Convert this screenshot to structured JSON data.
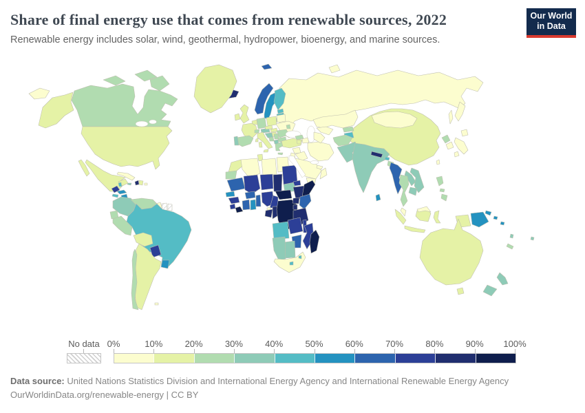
{
  "header": {
    "title": "Share of final energy use that comes from renewable sources, 2022",
    "subtitle": "Renewable energy includes solar, wind, geothermal, hydropower, bioenergy, and marine sources.",
    "logo": {
      "line1": "Our World",
      "line2": "in Data",
      "bg": "#132b4d",
      "accent": "#d93a2f"
    }
  },
  "legend": {
    "no_data_label": "No data",
    "tick_labels": [
      "0%",
      "10%",
      "20%",
      "30%",
      "40%",
      "50%",
      "60%",
      "70%",
      "80%",
      "90%",
      "100%"
    ],
    "bucket_ranges": [
      "0-10%",
      "10-20%",
      "20-30%",
      "30-40%",
      "40-50%",
      "50-60%",
      "60-70%",
      "70-80%",
      "80-90%",
      "90-100%"
    ],
    "colors": [
      "#fcfdcf",
      "#e5f2a6",
      "#b1dcb0",
      "#8ecbb7",
      "#54bcc5",
      "#2492c0",
      "#2d64ae",
      "#2c3f97",
      "#202e6f",
      "#0f1e4d"
    ]
  },
  "footer": {
    "source_label": "Data source:",
    "source_text": " United Nations Statistics Division and International Energy Agency and International Renewable Energy Agency",
    "link_line": "OurWorldinData.org/renewable-energy | CC BY"
  },
  "map": {
    "ocean": "#ffffff",
    "stroke": "#bdbdae",
    "countries": {
      "russia": 0,
      "kazakhstan": 0,
      "uzbekistan": 0,
      "turkmenistan": 0,
      "kyrgyzstan": 2,
      "tajikistan": 4,
      "mongolia": 0,
      "china": 1,
      "north-korea": 2,
      "south-korea": 0,
      "japan": 0,
      "taiwan": 0,
      "afghanistan": 2,
      "pakistan": 3,
      "india": 3,
      "nepal": 8,
      "bhutan": 4,
      "bangladesh": 2,
      "sri-lanka": 5,
      "myanmar": 6,
      "thailand": 2,
      "laos": 3,
      "vietnam": 3,
      "cambodia": 3,
      "malaysia": 0,
      "indonesia": 1,
      "timor-leste": 1,
      "papua-new-guinea": 5,
      "solomon-islands": 5,
      "vanuatu": 3,
      "fiji": 3,
      "new-caledonia": 2,
      "philippines": 2,
      "australia": 1,
      "new-zealand": 3,
      "iran": 0,
      "iraq": 0,
      "saudi-arabia": 0,
      "yemen": 0,
      "oman": 0,
      "syria": 0,
      "jordan-israel": 0,
      "gulf-states": 0,
      "turkey": 1,
      "georgia": 2,
      "armenia": 1,
      "azerbaijan": 0,
      "iceland": 8,
      "norway": 6,
      "sweden": 5,
      "finland": 4,
      "denmark": 4,
      "united-kingdom": 1,
      "ireland": 1,
      "estonia": 4,
      "latvia": 4,
      "lithuania": 2,
      "belarus": 0,
      "poland": 1,
      "germany": 2,
      "benelux": 1,
      "france": 1,
      "switzerland": 2,
      "austria": 3,
      "czechia": 1,
      "slovakia": 1,
      "hungary": 1,
      "ukraine": 0,
      "moldova": 2,
      "romania": 2,
      "bulgaria": 2,
      "serbia": 2,
      "bosnia": 2,
      "croatia": 3,
      "albania": 3,
      "greece": 2,
      "italy": 1,
      "spain": 2,
      "portugal": 3,
      "morocco": 1,
      "western-sahara": 2,
      "algeria": 0,
      "tunisia": 1,
      "libya": 0,
      "egypt": 0,
      "mauritania": 6,
      "mali": 7,
      "niger": 7,
      "chad": 8,
      "sudan": 7,
      "south-sudan": 3,
      "eritrea": 7,
      "ethiopia": 8,
      "somalia": 9,
      "djibouti": 5,
      "senegal": 5,
      "guinea": 7,
      "sierra-leone": 7,
      "liberia": 9,
      "ivory-coast": 6,
      "ghana": 5,
      "burkina-faso": 6,
      "togo-benin": 6,
      "nigeria": 7,
      "cameroon": 7,
      "central-african-republic": 9,
      "equatorial-guinea": 0,
      "gabon": 8,
      "congo": 8,
      "dr-congo": 9,
      "uganda": 8,
      "kenya": 6,
      "rwanda-burundi": 8,
      "tanzania": 8,
      "angola": 4,
      "zambia": 7,
      "malawi": 7,
      "mozambique": 7,
      "zimbabwe": 6,
      "botswana": 3,
      "namibia": 3,
      "south-africa": 0,
      "lesotho": 4,
      "eswatini": 4,
      "madagascar": 9,
      "greenland": 1,
      "canada": 2,
      "united-states": 1,
      "mexico": 1,
      "guatemala": 7,
      "belize": 4,
      "honduras": 5,
      "el-salvador": 4,
      "nicaragua": 5,
      "costa-rica": 4,
      "panama": 4,
      "cuba": 0,
      "jamaica": 3,
      "haiti": 8,
      "dominican-republic": 1,
      "puerto-rico": 0,
      "colombia": 3,
      "venezuela": 2,
      "guyana": 0,
      "suriname": "nodata",
      "french-guiana": "nodata",
      "ecuador": 2,
      "peru": 2,
      "brazil": 4,
      "bolivia": 1,
      "paraguay": 7,
      "uruguay": 5,
      "argentina": 1,
      "chile": 2,
      "falkland-islands": 0
    }
  }
}
